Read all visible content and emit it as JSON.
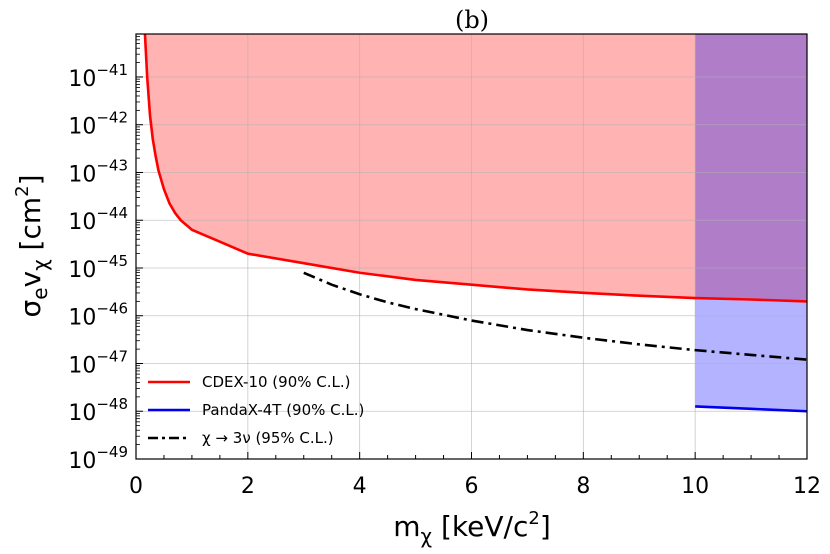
{
  "chart_data": {
    "type": "line",
    "title": "(b)",
    "xlabel": "m",
    "xlabel_sub": "χ",
    "xlabel_unit": "[keV/c",
    "xlabel_unit_sup": "2",
    "xlabel_unit_end": "]",
    "ylabel": "σ",
    "ylabel_sub1": "e",
    "ylabel_v": "v",
    "ylabel_sub2": "χ",
    "ylabel_unit": "[cm",
    "ylabel_unit_sup": "2",
    "ylabel_unit_end": "]",
    "xlim": [
      0,
      12
    ],
    "ylim_log10": [
      -49,
      -40.1
    ],
    "x_ticks": [
      {
        "value": 0,
        "label": "0"
      },
      {
        "value": 2,
        "label": "2"
      },
      {
        "value": 4,
        "label": "4"
      },
      {
        "value": 6,
        "label": "6"
      },
      {
        "value": 8,
        "label": "8"
      },
      {
        "value": 10,
        "label": "10"
      },
      {
        "value": 12,
        "label": "12"
      }
    ],
    "y_ticks": [
      {
        "value": -41,
        "base": "10",
        "exp": "−41"
      },
      {
        "value": -42,
        "base": "10",
        "exp": "−42"
      },
      {
        "value": -43,
        "base": "10",
        "exp": "−43"
      },
      {
        "value": -44,
        "base": "10",
        "exp": "−44"
      },
      {
        "value": -45,
        "base": "10",
        "exp": "−45"
      },
      {
        "value": -46,
        "base": "10",
        "exp": "−46"
      },
      {
        "value": -47,
        "base": "10",
        "exp": "−47"
      },
      {
        "value": -48,
        "base": "10",
        "exp": "−48"
      },
      {
        "value": -49,
        "base": "10",
        "exp": "−49"
      }
    ],
    "grid": true,
    "series": [
      {
        "name": "CDEX-10",
        "legend_label": "CDEX-10   (90% C.L.)",
        "color": "#ff0000",
        "fill": "#ffb3b3",
        "style": "solid",
        "x": [
          0.16,
          0.2,
          0.25,
          0.3,
          0.35,
          0.4,
          0.5,
          0.6,
          0.7,
          0.8,
          1.0,
          1.5,
          2.0,
          3.0,
          4.0,
          5.0,
          6.0,
          7.0,
          8.0,
          9.0,
          10.0,
          11.0,
          12.0
        ],
        "log10_y": [
          -40.1,
          -41.0,
          -41.8,
          -42.3,
          -42.65,
          -42.95,
          -43.35,
          -43.65,
          -43.85,
          -44.0,
          -44.2,
          -44.45,
          -44.7,
          -44.9,
          -45.1,
          -45.25,
          -45.35,
          -45.45,
          -45.52,
          -45.58,
          -45.63,
          -45.66,
          -45.7
        ]
      },
      {
        "name": "PandaX-4T",
        "legend_label": "PandaX-4T   (90% C.L.)",
        "color": "#0000ee",
        "fill": "#b3b3ff",
        "style": "solid",
        "x": [
          10.0,
          11.0,
          12.0
        ],
        "log10_y": [
          -47.9,
          -47.95,
          -48.0
        ]
      },
      {
        "name": "χ → 3ν",
        "legend_label": "χ → 3ν  (95% C.L.)",
        "color": "#000000",
        "style": "dashdot",
        "x": [
          3.0,
          3.5,
          4.0,
          4.5,
          5.0,
          6.0,
          7.0,
          8.0,
          9.0,
          10.0,
          11.0,
          12.0
        ],
        "log10_y": [
          -45.1,
          -45.35,
          -45.55,
          -45.72,
          -45.86,
          -46.1,
          -46.3,
          -46.46,
          -46.6,
          -46.72,
          -46.82,
          -46.92
        ]
      }
    ],
    "overlap_fill": "#b07dc8",
    "legend_position": "lower-left"
  }
}
